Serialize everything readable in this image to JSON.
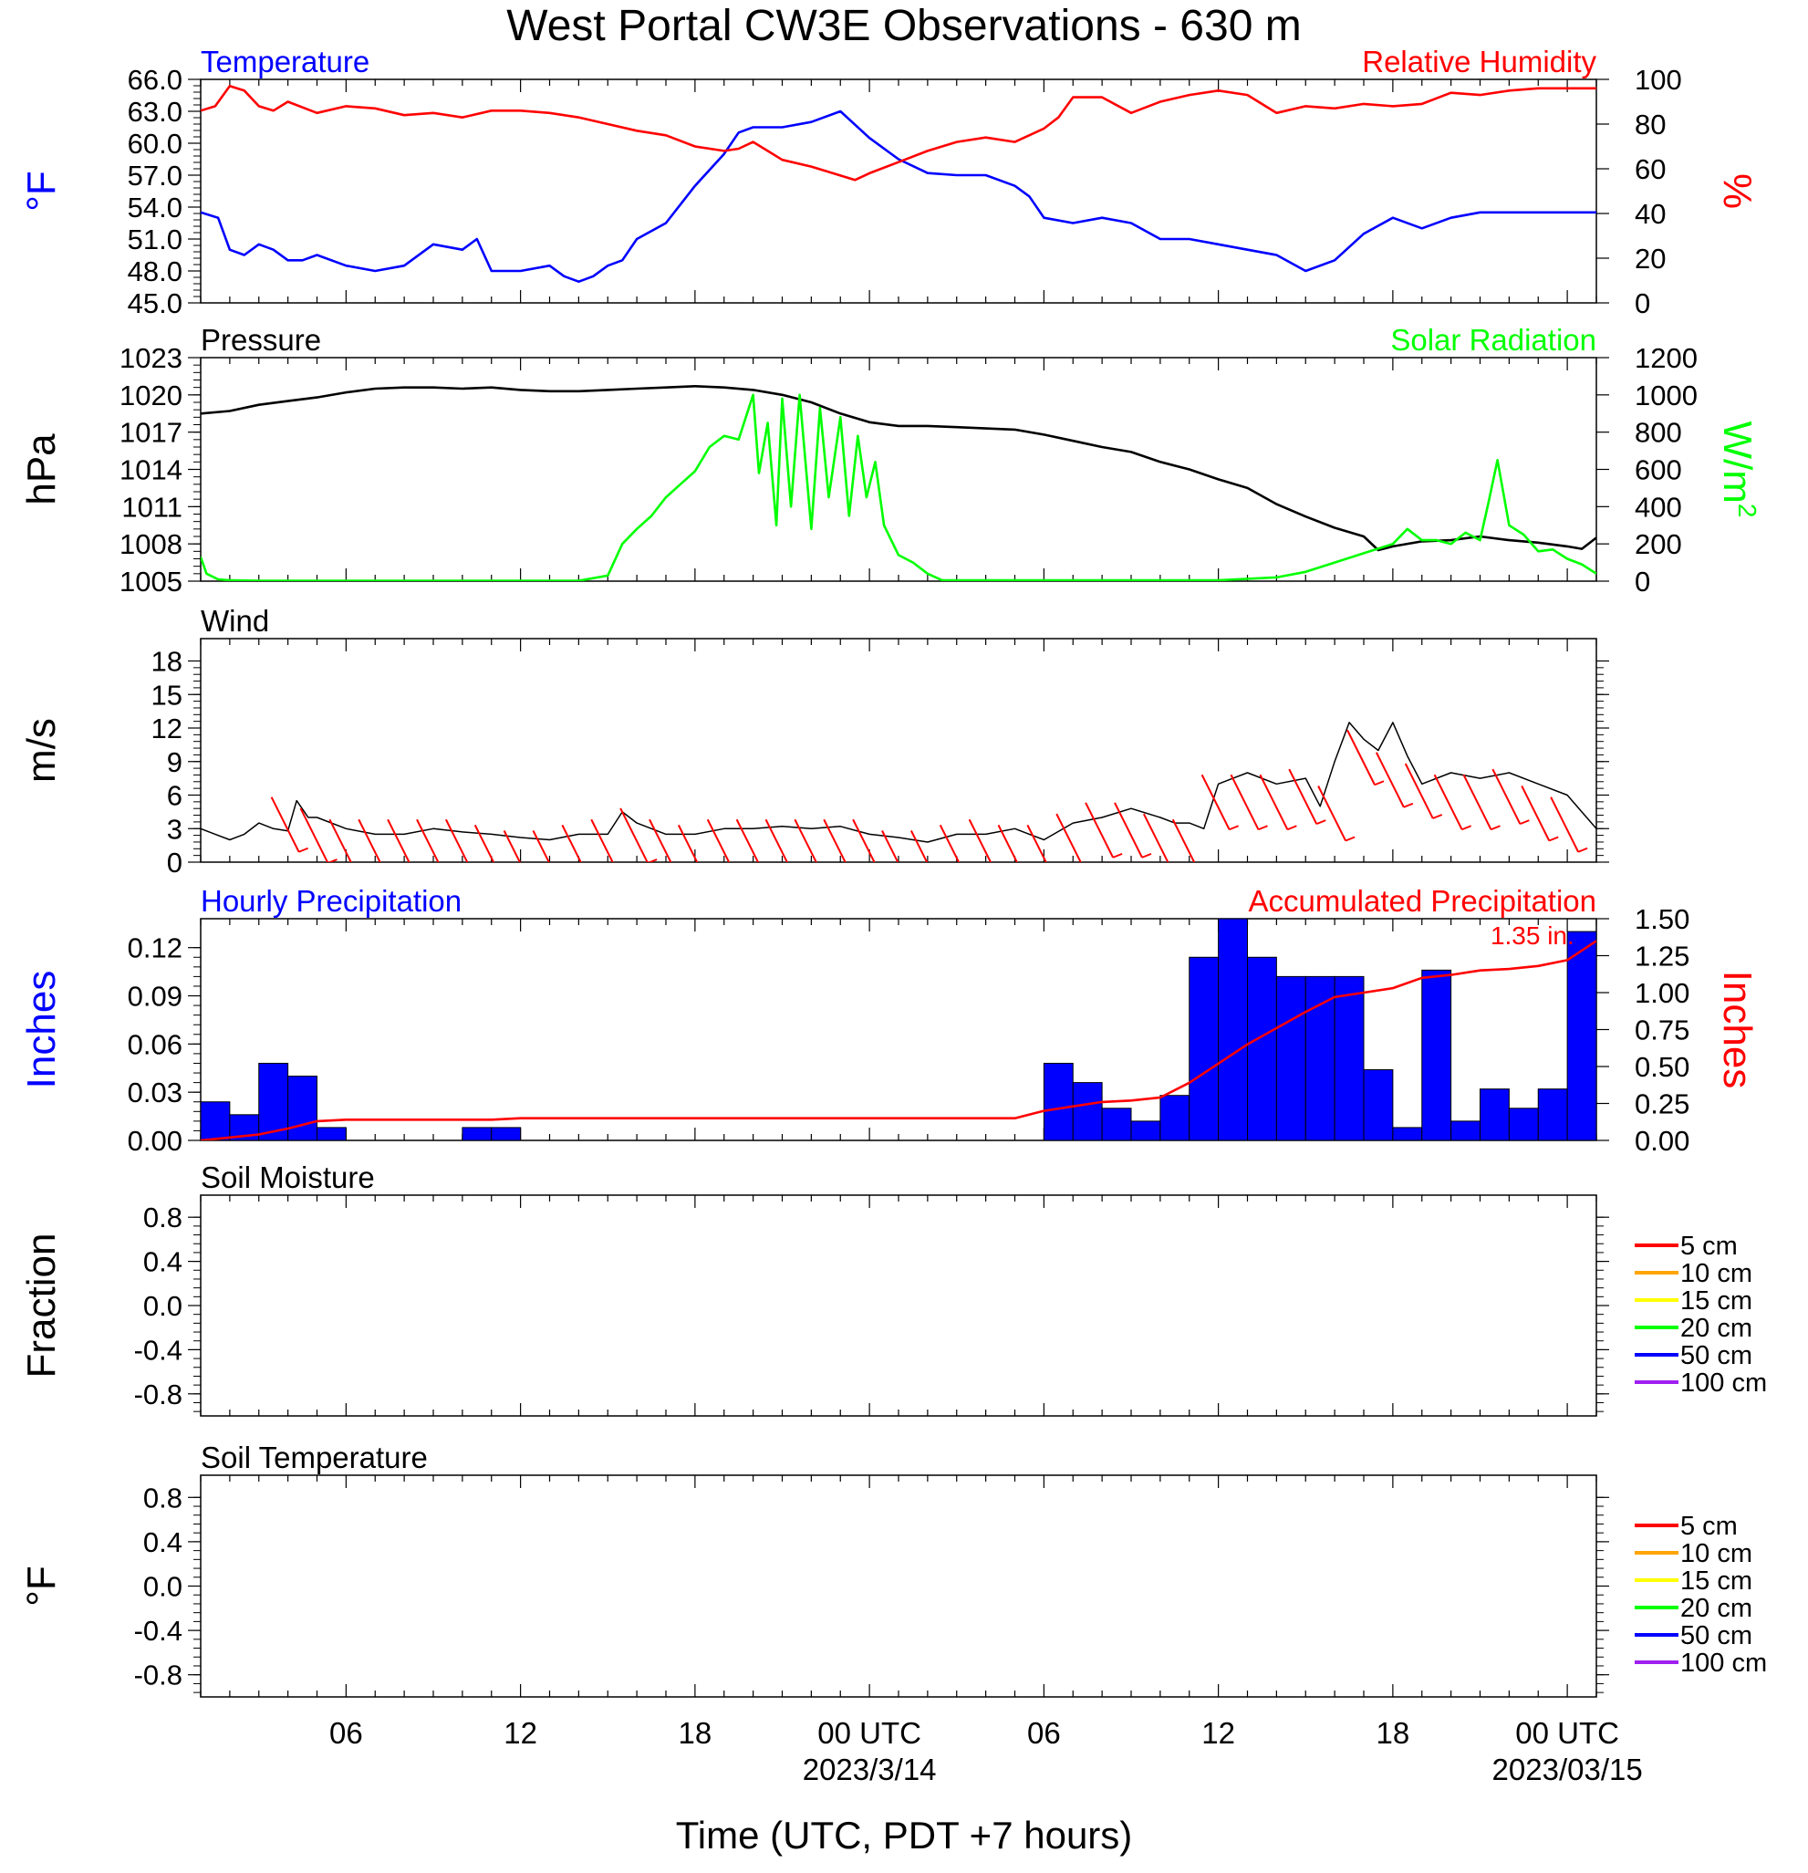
{
  "title": "West Portal CW3E Observations - 630 m",
  "xaxis_title": "Time (UTC, PDT +7 hours)",
  "colors": {
    "temperature": "#0000ff",
    "humidity": "#ff0000",
    "pressure": "#000000",
    "solar": "#00ff00",
    "wind_speed": "#000000",
    "wind_barb": "#ff0000",
    "hourly_precip": "#0000ff",
    "accum_precip": "#ff0000",
    "soil_5": "#ff0000",
    "soil_10": "#ffa500",
    "soil_15": "#ffff00",
    "soil_20": "#00ff00",
    "soil_50": "#0000ff",
    "soil_100": "#a020f0"
  },
  "chart_data": [
    {
      "type": "line",
      "panel": "temperature-humidity",
      "left_title": "Temperature",
      "right_title": "Relative Humidity",
      "ylabel_left": "°F",
      "ylabel_right": "%",
      "x_hours": [
        0,
        48
      ],
      "ylim_left": [
        45,
        66
      ],
      "yticks_left": [
        "66.0",
        "63.0",
        "60.0",
        "57.0",
        "54.0",
        "51.0",
        "48.0",
        "45.0"
      ],
      "ylim_right": [
        0,
        100
      ],
      "yticks_right": [
        "100",
        "80",
        "60",
        "40",
        "20",
        "0"
      ],
      "series": [
        {
          "name": "Temperature",
          "axis": "left",
          "x": [
            0,
            0.6,
            1,
            1.5,
            2,
            2.5,
            3,
            3.5,
            4,
            5,
            6,
            7,
            8,
            9,
            9.5,
            10,
            11,
            12,
            12.5,
            13,
            13.5,
            14,
            14.5,
            15,
            16,
            17,
            18,
            18.5,
            19,
            20,
            21,
            22,
            23,
            24,
            25,
            26,
            27,
            28,
            28.5,
            29,
            30,
            31,
            32,
            33,
            34,
            35,
            36,
            37,
            38,
            39,
            40,
            41,
            42,
            43,
            44,
            45,
            46,
            47,
            48
          ],
          "values": [
            53.5,
            53,
            50,
            49.5,
            50.5,
            50,
            49,
            49,
            49.5,
            48.5,
            48,
            48.5,
            50.5,
            50,
            51,
            48,
            48,
            48.5,
            47.5,
            47,
            47.5,
            48.5,
            49,
            51,
            52.5,
            56,
            59,
            61,
            61.5,
            61.5,
            62,
            63,
            60.5,
            58.5,
            57.2,
            57,
            57,
            56,
            55,
            53,
            52.5,
            53,
            52.5,
            51,
            51,
            50.5,
            50,
            49.5,
            48,
            49,
            51.5,
            53,
            52,
            53,
            53.5,
            53.5,
            53.5,
            53.5,
            53.5
          ]
        },
        {
          "name": "Relative Humidity",
          "axis": "right",
          "x": [
            0,
            0.5,
            1,
            1.5,
            2,
            2.5,
            3,
            4,
            5,
            6,
            7,
            8,
            9,
            10,
            11,
            12,
            13,
            14,
            15,
            16,
            17,
            18,
            18.5,
            19,
            19.5,
            20,
            21,
            22,
            22.5,
            23,
            24,
            25,
            26,
            27,
            28,
            29,
            29.5,
            30,
            31,
            32,
            33,
            34,
            35,
            36,
            37,
            38,
            39,
            40,
            41,
            42,
            43,
            44,
            45,
            46,
            47,
            48
          ],
          "values": [
            86,
            88,
            97,
            95,
            88,
            86,
            90,
            85,
            88,
            87,
            84,
            85,
            83,
            86,
            86,
            85,
            83,
            80,
            77,
            75,
            70,
            68,
            69,
            72,
            68,
            64,
            61,
            57,
            55,
            58,
            63,
            68,
            72,
            74,
            72,
            78,
            83,
            92,
            92,
            85,
            90,
            93,
            95,
            93,
            85,
            88,
            87,
            89,
            88,
            89,
            94,
            93,
            95,
            96,
            96,
            96
          ]
        }
      ]
    },
    {
      "type": "line",
      "panel": "pressure-solar",
      "left_title": "Pressure",
      "right_title": "Solar Radiation",
      "ylabel_left": "hPa",
      "ylabel_right": "W/m²",
      "ylabel_right_base": "W/m",
      "ylabel_right_sup": "2",
      "x_hours": [
        0,
        48
      ],
      "ylim_left": [
        1005,
        1023
      ],
      "yticks_left": [
        "1023",
        "1020",
        "1017",
        "1014",
        "1011",
        "1008",
        "1005"
      ],
      "ylim_right": [
        0,
        1200
      ],
      "yticks_right": [
        "1200",
        "1000",
        "800",
        "600",
        "400",
        "200",
        "0"
      ],
      "series": [
        {
          "name": "Pressure",
          "axis": "left",
          "x": [
            0,
            1,
            2,
            3,
            4,
            5,
            6,
            7,
            8,
            9,
            10,
            11,
            12,
            13,
            14,
            15,
            16,
            17,
            18,
            19,
            20,
            21,
            22,
            23,
            24,
            25,
            26,
            27,
            28,
            29,
            30,
            31,
            32,
            33,
            34,
            35,
            36,
            37,
            38,
            39,
            40,
            40.5,
            41,
            42,
            43,
            44,
            45,
            46,
            47,
            47.5,
            48
          ],
          "values": [
            1018.5,
            1018.7,
            1019.2,
            1019.5,
            1019.8,
            1020.2,
            1020.5,
            1020.6,
            1020.6,
            1020.5,
            1020.6,
            1020.4,
            1020.3,
            1020.3,
            1020.4,
            1020.5,
            1020.6,
            1020.7,
            1020.6,
            1020.4,
            1020,
            1019.4,
            1018.5,
            1017.8,
            1017.5,
            1017.5,
            1017.4,
            1017.3,
            1017.2,
            1016.8,
            1016.3,
            1015.8,
            1015.4,
            1014.6,
            1014,
            1013.2,
            1012.5,
            1011.2,
            1010.2,
            1009.3,
            1008.6,
            1007.5,
            1007.8,
            1008.2,
            1008.3,
            1008.6,
            1008.3,
            1008.1,
            1007.8,
            1007.6,
            1008.5
          ]
        },
        {
          "name": "Solar Radiation",
          "axis": "right",
          "x": [
            0,
            0.2,
            0.6,
            1,
            2,
            13,
            14,
            14.5,
            15,
            15.5,
            16,
            16.5,
            17,
            17.5,
            18,
            18.5,
            19,
            19.2,
            19.5,
            19.8,
            20,
            20.3,
            20.6,
            21,
            21.3,
            21.6,
            22,
            22.3,
            22.6,
            22.9,
            23.2,
            23.5,
            24,
            24.5,
            25,
            25.5,
            35,
            37,
            38,
            39,
            40,
            41,
            41.5,
            42,
            42.5,
            43,
            43.5,
            44,
            44.3,
            44.6,
            45,
            45.5,
            46,
            46.5,
            47,
            47.5,
            48
          ],
          "values": [
            130,
            40,
            10,
            5,
            2,
            2,
            30,
            200,
            280,
            350,
            450,
            520,
            590,
            720,
            780,
            760,
            1000,
            580,
            850,
            300,
            980,
            400,
            1000,
            280,
            930,
            450,
            880,
            350,
            780,
            450,
            640,
            300,
            140,
            100,
            40,
            5,
            5,
            20,
            50,
            100,
            150,
            200,
            280,
            220,
            220,
            200,
            260,
            220,
            430,
            650,
            300,
            250,
            160,
            170,
            120,
            90,
            40
          ]
        }
      ]
    },
    {
      "type": "line",
      "panel": "wind",
      "left_title": "Wind",
      "ylabel_left": "m/s",
      "x_hours": [
        0,
        48
      ],
      "ylim_left": [
        0,
        20
      ],
      "yticks_left": [
        "18",
        "15",
        "12",
        "9",
        "6",
        "3",
        "0"
      ],
      "series": [
        {
          "name": "Wind",
          "x": [
            0,
            0.5,
            1,
            1.5,
            2,
            2.5,
            3,
            3.3,
            3.7,
            4,
            5,
            6,
            7,
            8,
            9,
            10,
            11,
            12,
            13,
            14,
            14.5,
            15,
            16,
            17,
            18,
            19,
            20,
            21,
            22,
            23,
            24,
            25,
            26,
            27,
            28,
            28.5,
            29,
            30,
            31,
            32,
            33,
            33.5,
            34,
            34.5,
            35,
            35.5,
            36,
            37,
            38,
            38.5,
            39,
            39.5,
            40,
            40.5,
            41,
            41.5,
            42,
            43,
            44,
            45,
            46,
            47,
            48
          ],
          "values": [
            3,
            2.5,
            2,
            2.5,
            3.5,
            3,
            2.8,
            5.5,
            4,
            4,
            3,
            2.5,
            2.5,
            3,
            2.7,
            2.5,
            2.2,
            2,
            2.5,
            2.5,
            4.5,
            3.5,
            2.5,
            2.5,
            3,
            3,
            3.2,
            3,
            3.2,
            2.5,
            2.2,
            1.8,
            2.5,
            2.5,
            3,
            2.5,
            2,
            3.5,
            4,
            4.8,
            4,
            3.5,
            3.5,
            3,
            7,
            7.5,
            8,
            7,
            7.5,
            5,
            9,
            12.5,
            11,
            10,
            12.5,
            9.5,
            7,
            8,
            7.5,
            8,
            7,
            6,
            3
          ]
        }
      ]
    },
    {
      "type": "bar",
      "panel": "precipitation",
      "left_title": "Hourly Precipitation",
      "right_title": "Accumulated Precipitation",
      "ylabel_left": "Inches",
      "ylabel_right": "Inches",
      "x_hours": [
        0,
        48
      ],
      "ylim_left": [
        0,
        0.138
      ],
      "yticks_left": [
        "0.12",
        "0.09",
        "0.06",
        "0.03",
        "0.00"
      ],
      "ylim_right": [
        0,
        1.5
      ],
      "yticks_right": [
        "1.50",
        "1.25",
        "1.00",
        "0.75",
        "0.50",
        "0.25",
        "0.00"
      ],
      "accum_label": "1.35 in.",
      "series": [
        {
          "name": "Hourly Precipitation",
          "axis": "left",
          "x": [
            0,
            1,
            2,
            3,
            4,
            5,
            6,
            7,
            8,
            9,
            10,
            11,
            12,
            13,
            14,
            15,
            16,
            17,
            18,
            19,
            20,
            21,
            22,
            23,
            24,
            25,
            26,
            27,
            28,
            29,
            30,
            31,
            32,
            33,
            34,
            35,
            36,
            37,
            38,
            39,
            40,
            41,
            42,
            43,
            44,
            45,
            46,
            47
          ],
          "values": [
            0.024,
            0.016,
            0.048,
            0.04,
            0.008,
            0,
            0,
            0,
            0,
            0.008,
            0.008,
            0,
            0,
            0,
            0,
            0,
            0,
            0,
            0,
            0,
            0,
            0,
            0,
            0,
            0,
            0,
            0,
            0,
            0,
            0.048,
            0.036,
            0.02,
            0.012,
            0.028,
            0.114,
            0.138,
            0.114,
            0.102,
            0.102,
            0.102,
            0.044,
            0.008,
            0.106,
            0.012,
            0.032,
            0.02,
            0.032,
            0.13
          ]
        },
        {
          "name": "Accumulated Precipitation",
          "axis": "right",
          "x": [
            0,
            1,
            2,
            3,
            4,
            5,
            6,
            10,
            11,
            12,
            28,
            29,
            30,
            31,
            32,
            33,
            34,
            35,
            36,
            37,
            38,
            39,
            40,
            41,
            42,
            43,
            44,
            45,
            46,
            47,
            48
          ],
          "values": [
            0,
            0.02,
            0.04,
            0.08,
            0.13,
            0.14,
            0.14,
            0.14,
            0.15,
            0.15,
            0.15,
            0.2,
            0.23,
            0.26,
            0.27,
            0.29,
            0.39,
            0.52,
            0.65,
            0.76,
            0.87,
            0.97,
            1.0,
            1.03,
            1.1,
            1.12,
            1.15,
            1.16,
            1.18,
            1.22,
            1.35
          ]
        }
      ]
    },
    {
      "type": "line",
      "panel": "soil-moisture",
      "left_title": "Soil Moisture",
      "ylabel_left": "Fraction",
      "x_hours": [
        0,
        48
      ],
      "ylim_left": [
        -1,
        1
      ],
      "yticks_left": [
        "0.8",
        "0.4",
        "0.0",
        "-0.4",
        "-0.8"
      ],
      "legend": [
        "5 cm",
        "10 cm",
        "15 cm",
        "20 cm",
        "50 cm",
        "100 cm"
      ],
      "series": []
    },
    {
      "type": "line",
      "panel": "soil-temperature",
      "left_title": "Soil Temperature",
      "ylabel_left": "°F",
      "x_hours": [
        0,
        48
      ],
      "ylim_left": [
        -1,
        1
      ],
      "yticks_left": [
        "0.8",
        "0.4",
        "0.0",
        "-0.4",
        "-0.8"
      ],
      "legend": [
        "5 cm",
        "10 cm",
        "15 cm",
        "20 cm",
        "50 cm",
        "100 cm"
      ],
      "series": []
    }
  ],
  "xaxis": {
    "tick_hours": [
      5,
      11,
      17,
      23,
      29,
      35,
      41,
      47
    ],
    "tick_labels": [
      "06",
      "12",
      "18",
      "00 UTC",
      "06",
      "12",
      "18",
      "00 UTC"
    ],
    "date_labels": [
      "2023/3/14",
      "2023/03/15"
    ],
    "date_label_hours": [
      23,
      47
    ]
  },
  "wind_barbs": {
    "hours": [
      3,
      4,
      5,
      6,
      7,
      8,
      9,
      10,
      11,
      12,
      13,
      14,
      15,
      16,
      17,
      18,
      19,
      20,
      21,
      22,
      23,
      24,
      25,
      26,
      27,
      28,
      29,
      30,
      31,
      32,
      33,
      34,
      35,
      36,
      37,
      38,
      39,
      40,
      41,
      42,
      43,
      44,
      45,
      46,
      47
    ],
    "speeds": [
      5,
      4,
      3,
      3,
      3,
      3,
      3,
      2.5,
      2,
      2,
      2.5,
      3,
      4,
      3,
      2.5,
      3,
      3,
      3,
      3,
      3,
      3,
      2,
      2,
      2.5,
      3,
      2.5,
      2.5,
      3.5,
      4.5,
      4.5,
      3.5,
      3,
      7,
      7,
      7,
      7.5,
      6,
      11,
      9,
      8,
      7,
      7,
      7.5,
      6,
      5
    ]
  }
}
